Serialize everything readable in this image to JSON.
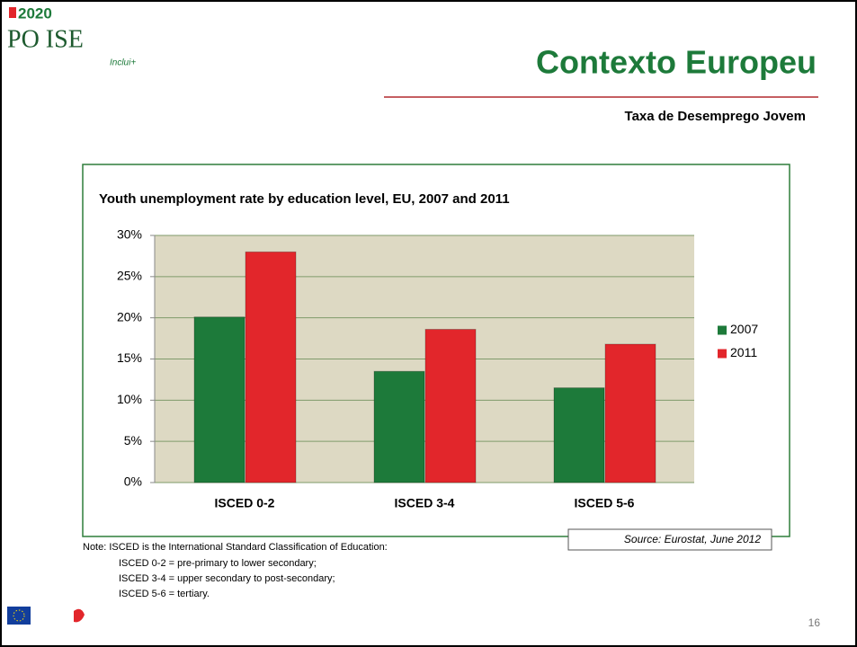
{
  "header": {
    "logo_year": "2020",
    "logo_name": "PO ISE",
    "logo_tag": "Inclui+",
    "title": "Contexto Europeu",
    "subtitle": "Taxa de Desemprego Jovem"
  },
  "chart_data": {
    "type": "bar",
    "title": "Youth unemployment rate by education level, EU, 2007 and 2011",
    "categories": [
      "ISCED 0-2",
      "ISCED 3-4",
      "ISCED 5-6"
    ],
    "series": [
      {
        "name": "2007",
        "color": "#1d7a3a",
        "values": [
          20.1,
          13.5,
          11.5
        ]
      },
      {
        "name": "2011",
        "color": "#e2262b",
        "values": [
          28,
          18.6,
          16.8
        ]
      }
    ],
    "ylim": [
      0,
      30
    ],
    "yticks": [
      {
        "value": 0,
        "label": "0%"
      },
      {
        "value": 5,
        "label": "5%"
      },
      {
        "value": 10,
        "label": "10%"
      },
      {
        "value": 15,
        "label": "15%"
      },
      {
        "value": 20,
        "label": "20%"
      },
      {
        "value": 25,
        "label": "25%"
      },
      {
        "value": 30,
        "label": "30%"
      }
    ],
    "grid": true,
    "legend": "right"
  },
  "source": "Source: Eurostat, June 2012",
  "notes": [
    "Note: ISCED is the International Standard Classification of Education:",
    "ISCED 0-2 = pre-primary to lower secondary;",
    "ISCED 3-4 = upper secondary to post-secondary;",
    "ISCED 5-6 = tertiary."
  ],
  "page_number": 16
}
